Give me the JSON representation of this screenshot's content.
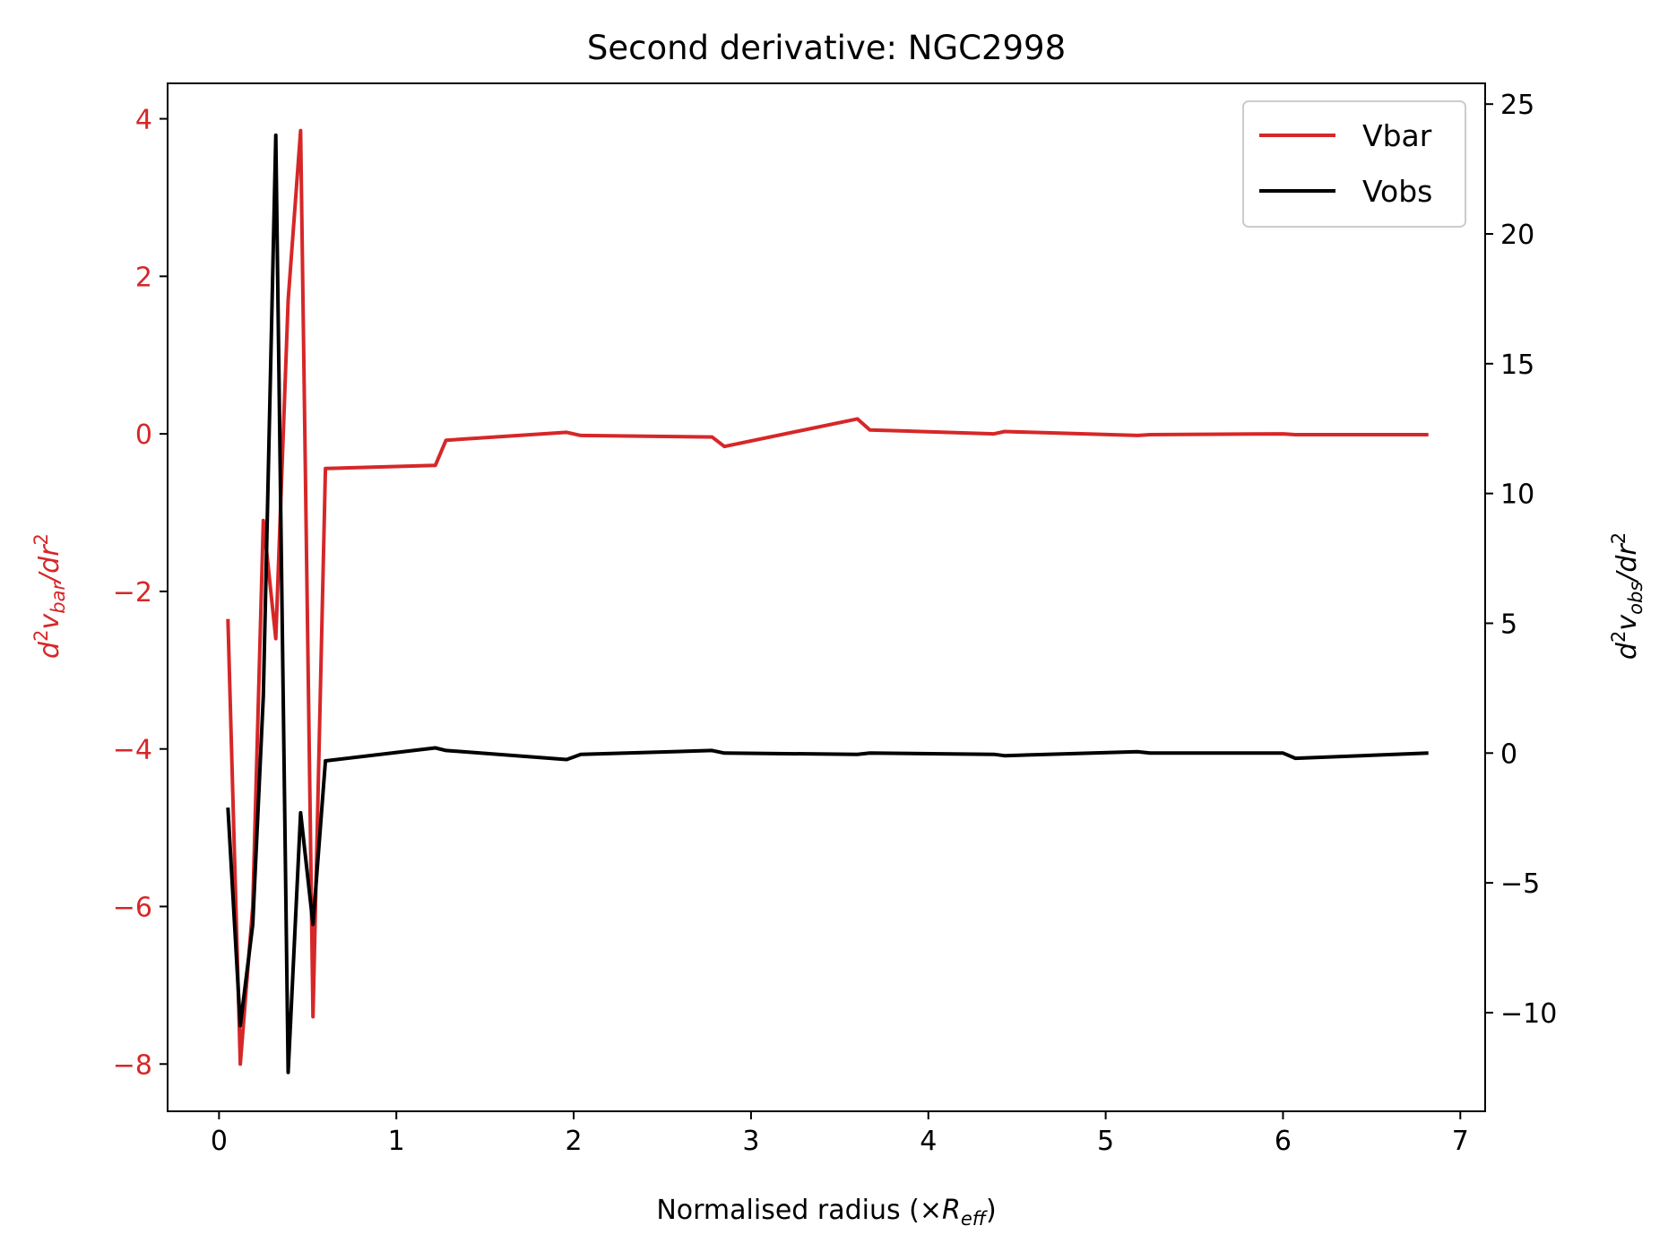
{
  "chart_data": {
    "type": "line",
    "title": "Second derivative: NGC2998",
    "xlabel": {
      "main": "Normalised radius (×",
      "var": "R",
      "sub": "eff",
      "close": ")"
    },
    "ylabel_left": {
      "pre": "d",
      "sup": "2",
      "v": "v",
      "sub": "bar",
      "post": "/dr",
      "sup2": "2"
    },
    "ylabel_right": {
      "pre": "d",
      "sup": "2",
      "v": "v",
      "sub": "obs",
      "post": "/dr",
      "sup2": "2"
    },
    "xlim": [
      -0.29,
      7.14
    ],
    "ylim_left": [
      -8.6,
      4.45
    ],
    "ylim_right": [
      -13.8,
      25.8
    ],
    "xticks": [
      0,
      1,
      2,
      3,
      4,
      5,
      6,
      7
    ],
    "yticks_left": [
      -8,
      -6,
      -4,
      -2,
      0,
      2,
      4
    ],
    "yticks_right": [
      -10,
      -5,
      0,
      5,
      10,
      15,
      20,
      25
    ],
    "legend_position": "top-right",
    "colors": {
      "vbar": "#d62728",
      "vobs": "#000000"
    },
    "series": [
      {
        "name": "Vbar",
        "axis": "left",
        "color": "#d62728",
        "x": [
          0.05,
          0.12,
          0.19,
          0.25,
          0.32,
          0.39,
          0.46,
          0.53,
          0.6,
          1.22,
          1.28,
          1.96,
          2.04,
          2.78,
          2.85,
          3.6,
          3.67,
          4.37,
          4.43,
          5.18,
          5.25,
          6.0,
          6.07,
          6.82
        ],
        "y": [
          -2.35,
          -8.0,
          -6.0,
          -1.1,
          -2.6,
          1.7,
          3.85,
          -7.4,
          -0.44,
          -0.4,
          -0.08,
          0.02,
          -0.02,
          -0.04,
          -0.16,
          0.19,
          0.05,
          0.0,
          0.03,
          -0.02,
          -0.01,
          0.0,
          -0.01,
          -0.01
        ]
      },
      {
        "name": "Vobs",
        "axis": "right",
        "color": "#000000",
        "x": [
          0.05,
          0.12,
          0.19,
          0.25,
          0.32,
          0.39,
          0.46,
          0.53,
          0.6,
          1.22,
          1.28,
          1.96,
          2.04,
          2.78,
          2.85,
          3.6,
          3.67,
          4.37,
          4.43,
          5.18,
          5.25,
          6.0,
          6.07,
          6.82
        ],
        "y": [
          -2.1,
          -10.5,
          -6.6,
          2.2,
          23.8,
          -12.3,
          -2.3,
          -6.6,
          -0.3,
          0.2,
          0.1,
          -0.25,
          -0.05,
          0.1,
          0.0,
          -0.05,
          0.0,
          -0.05,
          -0.1,
          0.05,
          0.0,
          0.0,
          -0.2,
          0.0
        ]
      }
    ]
  }
}
